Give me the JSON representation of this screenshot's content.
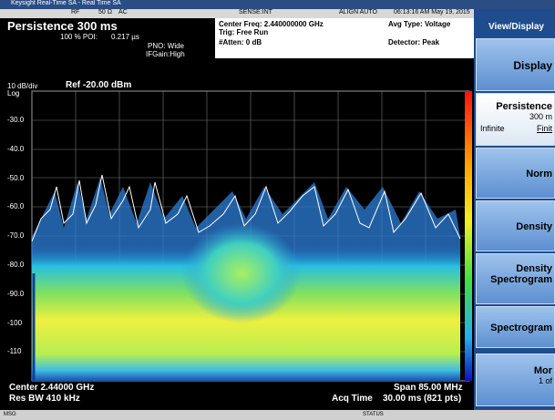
{
  "window": {
    "title": "Keysight Real-Time SA - Real Time SA"
  },
  "status_row": {
    "rf": "RF",
    "impedance": "50 Ω",
    "coupling": "AC",
    "sense": "SENSE:INT",
    "align": "ALIGN AUTO",
    "datetime": "06:13:16 AM May 19, 2015"
  },
  "header": {
    "mode": "Persistence 300 ms",
    "poi_label": "100 % POI:",
    "poi_value": "0.217 µs",
    "pno": "PNO: Wide",
    "ifgain": "IFGain:High",
    "center_freq": "Center Freq: 2.440000000 GHz",
    "trig": "Trig: Free Run",
    "atten": "#Atten: 0 dB",
    "avg_type": "Avg Type: Voltage",
    "detector": "Detector: Peak"
  },
  "plot": {
    "scale": "10 dB/div",
    "scale_type": "Log",
    "ref": "Ref -20.00 dBm",
    "y_labels": [
      "-30.0",
      "-40.0",
      "-50.0",
      "-60.0",
      "-70.0",
      "-80.0",
      "-90.0",
      "-100",
      "-110"
    ]
  },
  "footer": {
    "center": "Center 2.44000 GHz",
    "rbw": "Res BW 410 kHz",
    "span": "Span 85.00 MHz",
    "acq_label": "Acq Time",
    "acq_value": "30.00 ms (821 pts)"
  },
  "status_bar": {
    "msg": "MSG",
    "status": "STATUS"
  },
  "menu": {
    "title": "View/Display",
    "items": [
      {
        "label": "Display"
      },
      {
        "label": "Persistence",
        "value": "300 m",
        "options": [
          "Infinite",
          "Finit"
        ]
      },
      {
        "label": "Norm"
      },
      {
        "label": "Density"
      },
      {
        "label": "Density",
        "sub": "Spectrogram"
      },
      {
        "label": "Spectrogram"
      },
      {
        "label": "Mor",
        "sub": "1 of"
      }
    ]
  }
}
